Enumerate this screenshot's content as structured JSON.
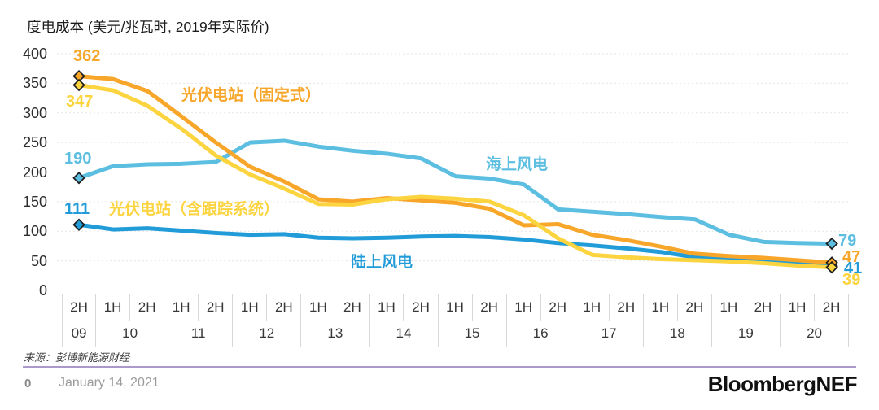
{
  "title": "度电成本 (美元/兆瓦时, 2019年实际价)",
  "source": "来源：彭博新能源财经",
  "footer": {
    "page_number": "0",
    "date": "January 14, 2021",
    "brand": "BloombergNEF"
  },
  "divider_color": "#AB98CD",
  "chart_data": {
    "type": "line",
    "title": "度电成本 (美元/兆瓦时, 2019年实际价)",
    "ylabel": "美元/兆瓦时 (2019年实际价)",
    "ylim": [
      0,
      400
    ],
    "yticks": [
      400,
      350,
      300,
      250,
      200,
      150,
      100,
      50,
      0
    ],
    "grid": true,
    "legend_position": "inline-annotations",
    "categories": [
      "2H09",
      "1H10",
      "2H10",
      "1H11",
      "2H11",
      "1H12",
      "2H12",
      "1H13",
      "2H13",
      "1H14",
      "2H14",
      "1H15",
      "2H15",
      "1H16",
      "2H16",
      "1H17",
      "2H17",
      "1H18",
      "2H18",
      "1H19",
      "2H19",
      "1H20",
      "2H20"
    ],
    "x_axis": {
      "half_labels": [
        "2H",
        "1H",
        "2H",
        "1H",
        "2H",
        "1H",
        "2H",
        "1H",
        "2H",
        "1H",
        "2H",
        "1H",
        "2H",
        "1H",
        "2H",
        "1H",
        "2H",
        "1H",
        "2H",
        "1H",
        "2H",
        "1H",
        "2H"
      ],
      "year_groups": [
        {
          "year": "09",
          "cols": 1
        },
        {
          "year": "10",
          "cols": 2
        },
        {
          "year": "11",
          "cols": 2
        },
        {
          "year": "12",
          "cols": 2
        },
        {
          "year": "13",
          "cols": 2
        },
        {
          "year": "14",
          "cols": 2
        },
        {
          "year": "15",
          "cols": 2
        },
        {
          "year": "16",
          "cols": 2
        },
        {
          "year": "17",
          "cols": 2
        },
        {
          "year": "18",
          "cols": 2
        },
        {
          "year": "19",
          "cols": 2
        },
        {
          "year": "20",
          "cols": 2
        }
      ]
    },
    "series": [
      {
        "id": "pv-fixed",
        "name": "光伏电站（固定式）",
        "color": "#F8A62A",
        "start_label": "362",
        "end_label": "47",
        "values": [
          362,
          357,
          337,
          294,
          250,
          209,
          184,
          154,
          150,
          156,
          152,
          148,
          138,
          110,
          112,
          94,
          85,
          74,
          62,
          58,
          55,
          51,
          47
        ]
      },
      {
        "id": "pv-tracking",
        "name": "光伏电站（含跟踪系统）",
        "color": "#FCD440",
        "start_label": "347",
        "end_label": "39",
        "values": [
          347,
          338,
          312,
          273,
          228,
          196,
          172,
          146,
          145,
          154,
          158,
          155,
          150,
          127,
          88,
          60,
          56,
          53,
          51,
          49,
          46,
          42,
          39
        ]
      },
      {
        "id": "offshore-wind",
        "name": "海上风电",
        "color": "#5CBEE0",
        "start_label": "190",
        "end_label": "79",
        "values": [
          190,
          210,
          213,
          214,
          217,
          250,
          253,
          243,
          236,
          231,
          223,
          193,
          189,
          179,
          137,
          133,
          129,
          124,
          120,
          94,
          82,
          80,
          79
        ]
      },
      {
        "id": "onshore-wind",
        "name": "陆上风电",
        "color": "#229CD8",
        "start_label": "111",
        "end_label": "41",
        "values": [
          111,
          103,
          105,
          101,
          97,
          94,
          95,
          89,
          88,
          89,
          91,
          92,
          90,
          86,
          80,
          76,
          71,
          65,
          56,
          53,
          50,
          47,
          41
        ]
      }
    ],
    "draw_order": [
      2,
      3,
      0,
      1
    ]
  }
}
